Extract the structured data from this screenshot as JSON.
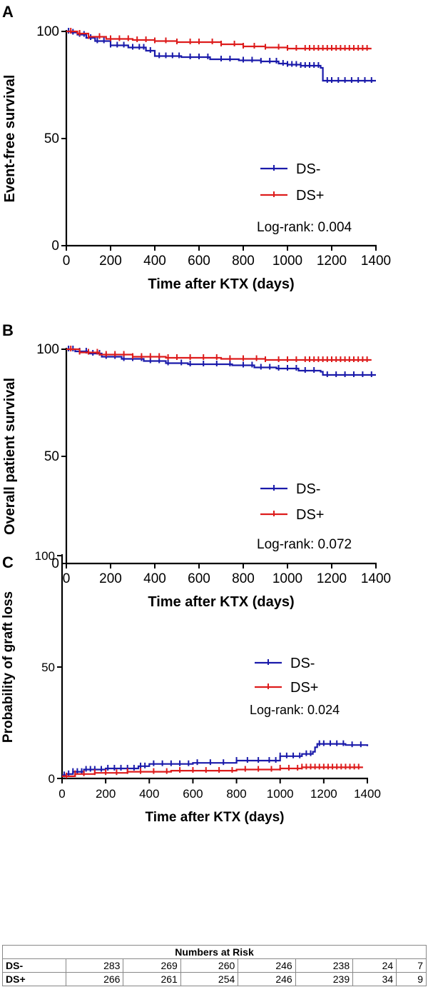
{
  "chart_data": [
    {
      "panel": "A",
      "type": "line",
      "subtype": "kaplan-meier",
      "ylabel": "Event-free survival",
      "xlabel": "Time after KTX (days)",
      "xlim": [
        0,
        1400
      ],
      "ylim": [
        0,
        100
      ],
      "xticks": [
        0,
        200,
        400,
        600,
        800,
        1000,
        1200,
        1400
      ],
      "yticks": [
        0,
        50,
        100
      ],
      "legend_position": "lower-right",
      "annotation": "Log-rank: 0.004",
      "series": [
        {
          "name": "DS-",
          "color": "#1a1aaa",
          "steps": [
            [
              0,
              100
            ],
            [
              20,
              99.5
            ],
            [
              50,
              98.5
            ],
            [
              90,
              97
            ],
            [
              130,
              95.5
            ],
            [
              200,
              93.5
            ],
            [
              280,
              92.5
            ],
            [
              360,
              91
            ],
            [
              400,
              88.5
            ],
            [
              520,
              88
            ],
            [
              650,
              87
            ],
            [
              780,
              86.5
            ],
            [
              880,
              86
            ],
            [
              960,
              85
            ],
            [
              1000,
              84.5
            ],
            [
              1060,
              84
            ],
            [
              1150,
              83
            ],
            [
              1160,
              77
            ],
            [
              1400,
              77
            ]
          ],
          "censor_x": [
            10,
            30,
            60,
            80,
            110,
            140,
            170,
            200,
            230,
            260,
            300,
            330,
            350,
            380,
            420,
            450,
            480,
            510,
            560,
            600,
            640,
            700,
            740,
            800,
            840,
            880,
            920,
            950,
            980,
            1000,
            1020,
            1040,
            1060,
            1080,
            1100,
            1120,
            1140,
            1180,
            1200,
            1230,
            1260,
            1290,
            1320,
            1350,
            1380
          ]
        },
        {
          "name": "DS+",
          "color": "#dd1c1c",
          "steps": [
            [
              0,
              100
            ],
            [
              50,
              99
            ],
            [
              100,
              97.5
            ],
            [
              180,
              96.5
            ],
            [
              300,
              96
            ],
            [
              400,
              95.5
            ],
            [
              500,
              95
            ],
            [
              700,
              94
            ],
            [
              800,
              93
            ],
            [
              900,
              92.5
            ],
            [
              1000,
              92
            ],
            [
              1380,
              92
            ]
          ],
          "censor_x": [
            20,
            60,
            100,
            150,
            200,
            240,
            280,
            320,
            360,
            400,
            450,
            500,
            560,
            600,
            660,
            700,
            760,
            800,
            850,
            900,
            960,
            1000,
            1040,
            1080,
            1100,
            1120,
            1140,
            1160,
            1180,
            1200,
            1220,
            1240,
            1260,
            1280,
            1300,
            1320,
            1340,
            1360
          ]
        }
      ]
    },
    {
      "panel": "B",
      "type": "line",
      "subtype": "kaplan-meier",
      "ylabel": "Overall patient survival",
      "xlabel": "Time after KTX (days)",
      "xlim": [
        0,
        1400
      ],
      "ylim": [
        0,
        100
      ],
      "xticks": [
        0,
        200,
        400,
        600,
        800,
        1000,
        1200,
        1400
      ],
      "yticks": [
        0,
        50,
        100
      ],
      "legend_position": "lower-right",
      "annotation": "Log-rank: 0.072",
      "series": [
        {
          "name": "DS-",
          "color": "#1a1aaa",
          "steps": [
            [
              0,
              100
            ],
            [
              40,
              99
            ],
            [
              100,
              98
            ],
            [
              160,
              96.5
            ],
            [
              250,
              95.5
            ],
            [
              350,
              94.5
            ],
            [
              450,
              93.5
            ],
            [
              550,
              93
            ],
            [
              750,
              92.5
            ],
            [
              850,
              91.5
            ],
            [
              950,
              91
            ],
            [
              1050,
              90
            ],
            [
              1150,
              89.5
            ],
            [
              1160,
              88
            ],
            [
              1400,
              88
            ]
          ],
          "censor_x": [
            10,
            30,
            60,
            90,
            120,
            150,
            180,
            220,
            260,
            300,
            340,
            380,
            420,
            460,
            520,
            560,
            620,
            680,
            740,
            800,
            840,
            880,
            920,
            960,
            1000,
            1040,
            1080,
            1120,
            1180,
            1220,
            1260,
            1300,
            1340,
            1380
          ]
        },
        {
          "name": "DS+",
          "color": "#dd1c1c",
          "steps": [
            [
              0,
              100
            ],
            [
              60,
              98.5
            ],
            [
              150,
              97.5
            ],
            [
              300,
              96.5
            ],
            [
              450,
              96
            ],
            [
              700,
              95.5
            ],
            [
              900,
              95
            ],
            [
              1380,
              95
            ]
          ],
          "censor_x": [
            20,
            60,
            100,
            140,
            180,
            220,
            260,
            300,
            340,
            380,
            420,
            460,
            500,
            560,
            620,
            680,
            740,
            800,
            860,
            900,
            960,
            1000,
            1040,
            1080,
            1100,
            1120,
            1140,
            1160,
            1180,
            1200,
            1220,
            1240,
            1260,
            1280,
            1300,
            1320,
            1340,
            1360
          ]
        }
      ]
    },
    {
      "panel": "C",
      "type": "line",
      "subtype": "cumulative-incidence",
      "ylabel": "Probability of graft loss",
      "xlabel": "Time after KTX (days)",
      "xlim": [
        0,
        1400
      ],
      "ylim": [
        0,
        100
      ],
      "xticks": [
        0,
        200,
        400,
        600,
        800,
        1000,
        1200,
        1400
      ],
      "yticks": [
        0,
        50,
        100
      ],
      "legend_position": "upper-right",
      "annotation": "Log-rank: 0.024",
      "series": [
        {
          "name": "DS-",
          "color": "#1a1aaa",
          "steps": [
            [
              0,
              1.5
            ],
            [
              20,
              2
            ],
            [
              50,
              3
            ],
            [
              100,
              4
            ],
            [
              200,
              4.5
            ],
            [
              350,
              5.5
            ],
            [
              400,
              6.5
            ],
            [
              600,
              7
            ],
            [
              800,
              8
            ],
            [
              1000,
              10
            ],
            [
              1100,
              11
            ],
            [
              1150,
              12
            ],
            [
              1160,
              14
            ],
            [
              1170,
              15.5
            ],
            [
              1300,
              15
            ],
            [
              1400,
              14.5
            ]
          ],
          "censor_x": [
            10,
            30,
            50,
            70,
            90,
            110,
            130,
            150,
            180,
            210,
            240,
            270,
            300,
            330,
            360,
            380,
            420,
            460,
            500,
            540,
            580,
            620,
            680,
            740,
            800,
            850,
            900,
            950,
            980,
            1000,
            1030,
            1060,
            1090,
            1120,
            1140,
            1180,
            1200,
            1230,
            1260,
            1290,
            1330,
            1370
          ]
        },
        {
          "name": "DS+",
          "color": "#dd1c1c",
          "steps": [
            [
              0,
              1
            ],
            [
              60,
              2
            ],
            [
              150,
              2.5
            ],
            [
              300,
              3
            ],
            [
              500,
              3.5
            ],
            [
              800,
              4
            ],
            [
              1000,
              4.5
            ],
            [
              1100,
              5
            ],
            [
              1380,
              5
            ]
          ],
          "censor_x": [
            20,
            60,
            100,
            150,
            200,
            250,
            300,
            360,
            420,
            480,
            540,
            600,
            660,
            720,
            780,
            840,
            900,
            960,
            1000,
            1040,
            1080,
            1100,
            1120,
            1140,
            1160,
            1180,
            1200,
            1220,
            1240,
            1260,
            1280,
            1300,
            1320,
            1340,
            1360
          ]
        }
      ]
    }
  ],
  "panel_labels": [
    "A",
    "B",
    "C"
  ],
  "risk_table": {
    "title": "Numbers at Risk",
    "rows": [
      {
        "group": "DS-",
        "values": [
          "283",
          "269",
          "260",
          "246",
          "238",
          "24",
          "7"
        ]
      },
      {
        "group": "DS+",
        "values": [
          "266",
          "261",
          "254",
          "246",
          "239",
          "34",
          "9"
        ]
      }
    ]
  }
}
